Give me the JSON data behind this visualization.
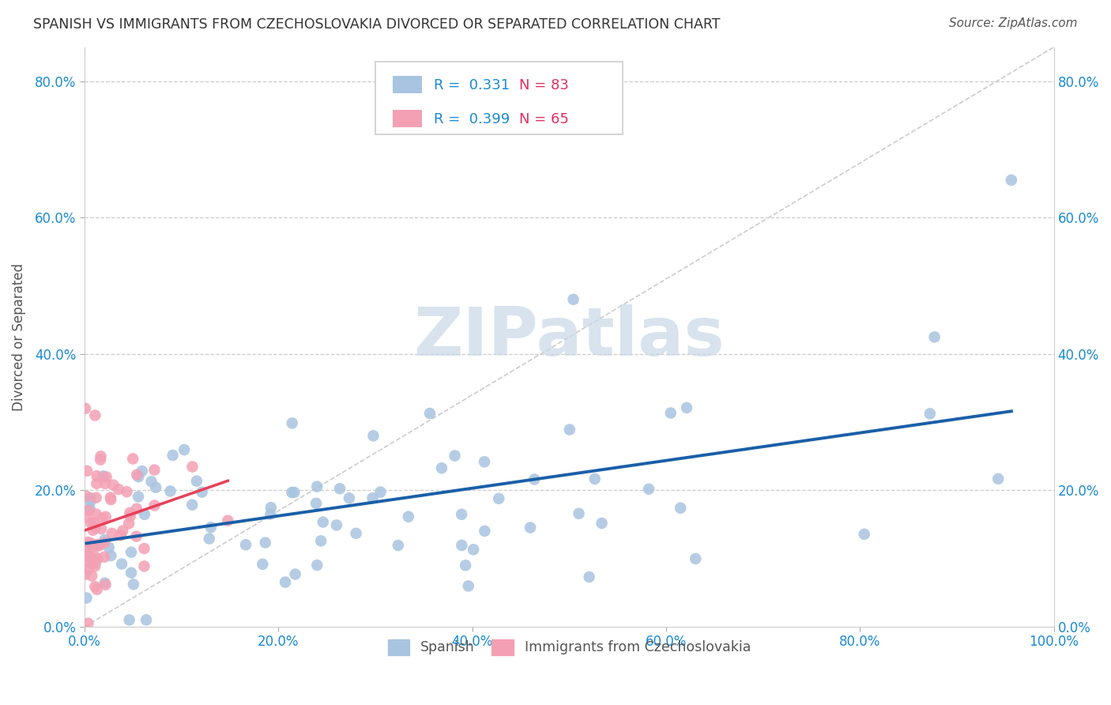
{
  "title": "SPANISH VS IMMIGRANTS FROM CZECHOSLOVAKIA DIVORCED OR SEPARATED CORRELATION CHART",
  "source": "Source: ZipAtlas.com",
  "ylabel": "Divorced or Separated",
  "xlim": [
    0,
    1.0
  ],
  "ylim": [
    0,
    0.85
  ],
  "yticks": [
    0.0,
    0.2,
    0.4,
    0.6,
    0.8
  ],
  "xticks": [
    0.0,
    0.2,
    0.4,
    0.6,
    0.8,
    1.0
  ],
  "ytick_labels": [
    "0.0%",
    "20.0%",
    "40.0%",
    "60.0%",
    "80.0%"
  ],
  "xtick_labels": [
    "0.0%",
    "20.0%",
    "40.0%",
    "60.0%",
    "80.0%",
    "100.0%"
  ],
  "series1_label": "Spanish",
  "series2_label": "Immigrants from Czechoslovakia",
  "series1_color": "#a8c4e0",
  "series2_color": "#f4a0b4",
  "series1_line_color": "#1a5fa8",
  "series2_line_color": "#e8405a",
  "series1_R": 0.331,
  "series1_N": 83,
  "series2_R": 0.399,
  "series2_N": 65,
  "legend_R_color": "#1a8ad4",
  "legend_N_color": "#e03060",
  "watermark_text": "ZIPatlas",
  "watermark_color": "#c8d8e8",
  "grid_color": "#cccccc",
  "diag_color": "#cccccc",
  "background_color": "#ffffff",
  "title_color": "#333333",
  "axis_tick_color": "#1a8ad4",
  "ylabel_color": "#555555",
  "source_color": "#555555"
}
